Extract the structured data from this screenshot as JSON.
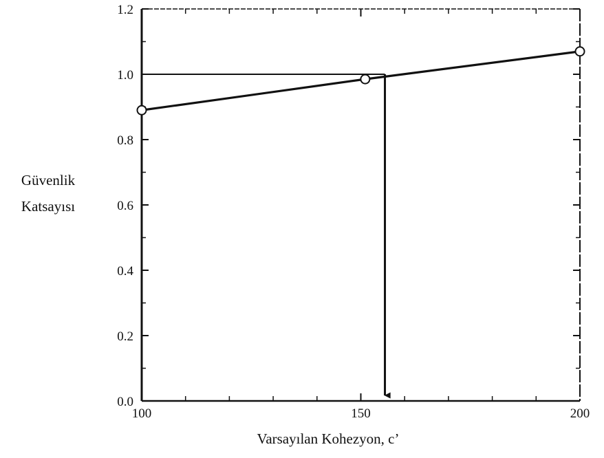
{
  "chart_data": {
    "type": "line",
    "xlabel": "Varsayılan Kohezyon, c’",
    "ylabel": [
      "Güvenlik",
      "Katsayısı"
    ],
    "xlim": [
      100,
      200
    ],
    "ylim": [
      0.0,
      1.2
    ],
    "x_ticks": [
      100,
      150,
      200
    ],
    "x_tick_labels": [
      "100",
      "150",
      "200"
    ],
    "y_ticks": [
      0.0,
      0.2,
      0.4,
      0.6,
      0.8,
      1.0,
      1.2
    ],
    "y_tick_labels": [
      "0.0",
      "0.2",
      "0.4",
      "0.6",
      "0.8",
      "1.0",
      "1.2"
    ],
    "grid": false,
    "series": [
      {
        "x": [
          100,
          151,
          200
        ],
        "y": [
          0.89,
          0.985,
          1.07
        ],
        "marker": "circle"
      }
    ],
    "annotations": [
      {
        "type": "reference-line",
        "from": [
          100,
          1.0
        ],
        "to": [
          155.5,
          1.0
        ]
      },
      {
        "type": "arrow-down",
        "x": 155.5,
        "from_y": 1.0,
        "to_y": 0.0
      }
    ],
    "colors": {
      "line": "#111111",
      "marker_fill": "#ffffff",
      "background": "#ffffff"
    }
  }
}
